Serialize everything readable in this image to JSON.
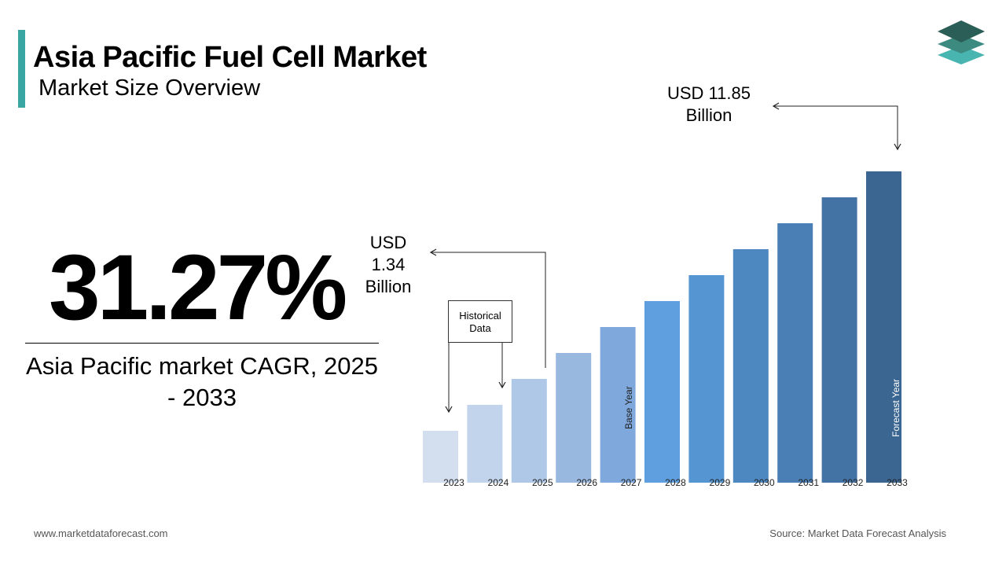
{
  "header": {
    "title": "Asia Pacific Fuel Cell Market",
    "subtitle": "Market Size Overview"
  },
  "highlight": {
    "cagr_value": "31.27%",
    "cagr_label": "Asia Pacific market CAGR, 2025 - 2033"
  },
  "callouts": {
    "start_value": "USD 1.34 Billion",
    "end_value": "USD 11.85 Billion",
    "historical": "Historical Data",
    "base_year": "Base Year",
    "forecast_year": "Forecast Year"
  },
  "footer": {
    "website": "www.marketdataforecast.com",
    "source": "Source: Market Data Forecast Analysis"
  },
  "colors": {
    "accent": "#3aa6a3",
    "logo_dark": "#2b5e56",
    "logo_mid": "#3d8b80",
    "logo_light": "#48b5b0"
  },
  "icons": [
    "layers-logo-icon",
    "arrow-icon"
  ],
  "chart_data": {
    "type": "bar",
    "categories": [
      "2023",
      "2024",
      "2025",
      "2026",
      "2027",
      "2028",
      "2029",
      "2030",
      "2031",
      "2032",
      "2033"
    ],
    "values": [
      1.0,
      1.5,
      2.0,
      2.5,
      3.0,
      3.5,
      4.0,
      4.5,
      5.0,
      5.5,
      6.0
    ],
    "bar_colors": [
      "#d3deef",
      "#c2d4ec",
      "#b0c8e7",
      "#98b8e0",
      "#7fa8dc",
      "#5f9edf",
      "#5595d1",
      "#4d88c0",
      "#4a7fb5",
      "#4373a5",
      "#3a6691"
    ],
    "title": "",
    "xlabel": "",
    "ylabel": "",
    "grid": false
  }
}
